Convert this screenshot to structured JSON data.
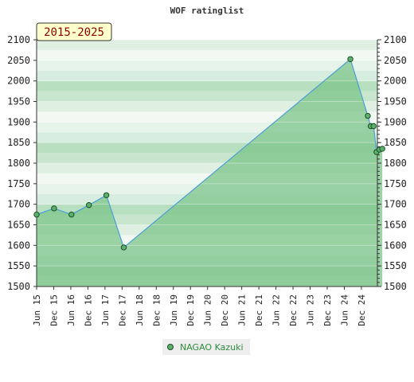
{
  "chart_data": {
    "type": "area",
    "title": "WOF ratinglist",
    "range_label": "2015-2025",
    "xlabel": "",
    "ylabel": "",
    "ylim": [
      1500,
      2100
    ],
    "yticks": [
      1500,
      1550,
      1600,
      1650,
      1700,
      1750,
      1800,
      1850,
      1900,
      1950,
      2000,
      2050,
      2100
    ],
    "xtick_labels": [
      "Jun 15",
      "Dec 15",
      "Jun 16",
      "Dec 16",
      "Jun 17",
      "Dec 17",
      "Jun 18",
      "Dec 18",
      "Jun 19",
      "Dec 19",
      "Jun 20",
      "Dec 20",
      "Jun 21",
      "Dec 21",
      "Jun 22",
      "Dec 22",
      "Jun 23",
      "Dec 23",
      "Jun 24",
      "Dec 24"
    ],
    "series": [
      {
        "name": "NAGAO Kazuki",
        "points": [
          {
            "x": "2015-06",
            "y": 1675
          },
          {
            "x": "2015-12",
            "y": 1690
          },
          {
            "x": "2016-06",
            "y": 1675
          },
          {
            "x": "2016-12",
            "y": 1698
          },
          {
            "x": "2017-06",
            "y": 1722
          },
          {
            "x": "2017-12",
            "y": 1595
          },
          {
            "x": "2024-06",
            "y": 2053
          },
          {
            "x": "2024-12",
            "y": 1915
          },
          {
            "x": "2025-01",
            "y": 1890
          },
          {
            "x": "2025-02",
            "y": 1890
          },
          {
            "x": "2025-03",
            "y": 1827
          },
          {
            "x": "2025-04",
            "y": 1833
          },
          {
            "x": "2025-05",
            "y": 1835
          }
        ]
      }
    ],
    "grid": true,
    "legend_position": "bottom",
    "colors": {
      "fill": "#7cc48a",
      "line": "#4a9fd6",
      "marker": "#5bb36b",
      "marker_edge": "#1e4a28",
      "range_box": "#ffffcc"
    }
  }
}
